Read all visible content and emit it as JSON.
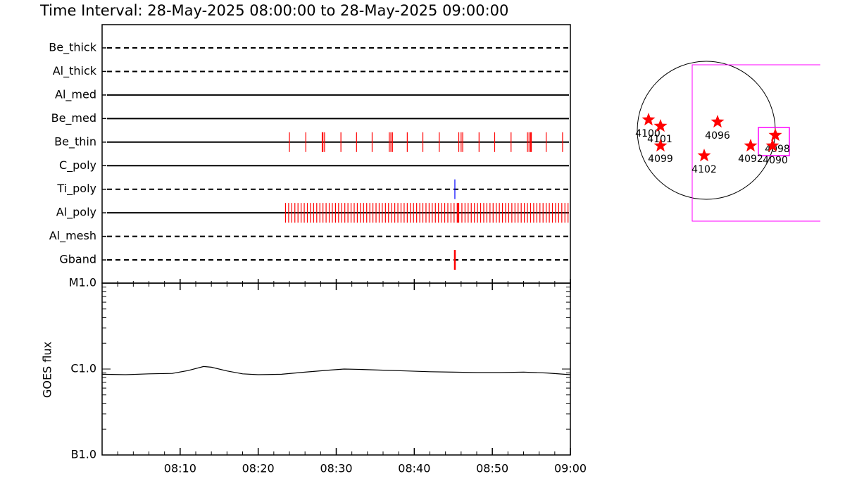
{
  "title": "Time Interval: 28-May-2025 08:00:00 to 28-May-2025 09:00:00",
  "filter_panel": {
    "xlim": [
      0,
      60
    ],
    "filters": [
      {
        "name": "Be_thick",
        "line": "dashed",
        "events": []
      },
      {
        "name": "Al_thick",
        "line": "dashed",
        "events": []
      },
      {
        "name": "Al_med",
        "line": "solid",
        "events": []
      },
      {
        "name": "Be_med",
        "line": "solid",
        "events": []
      },
      {
        "name": "Be_thin",
        "line": "solid",
        "color": "#ff0000",
        "events": [
          24.0,
          26.1,
          28.2,
          28.3,
          28.5,
          30.6,
          32.6,
          34.6,
          36.8,
          37.0,
          37.2,
          39.1,
          41.1,
          43.2,
          45.7,
          46.0,
          46.2,
          48.3,
          50.3,
          52.4,
          54.5,
          54.7,
          54.9,
          55.0,
          56.9,
          59.0
        ]
      },
      {
        "name": "C_poly",
        "line": "solid",
        "events": []
      },
      {
        "name": "Ti_poly",
        "line": "dashed",
        "color": "#0000ff",
        "events": [
          45.2
        ]
      },
      {
        "name": "Al_poly",
        "line": "solid",
        "color": "#ff0000",
        "events": [
          23.5,
          23.9,
          24.3,
          24.7,
          25.1,
          25.5,
          25.9,
          26.3,
          26.7,
          27.1,
          27.5,
          27.9,
          28.3,
          28.7,
          29.1,
          29.5,
          29.9,
          30.3,
          30.7,
          31.1,
          31.5,
          31.9,
          32.3,
          32.7,
          33.1,
          33.5,
          33.9,
          34.3,
          34.7,
          35.1,
          35.5,
          35.9,
          36.3,
          36.7,
          37.1,
          37.5,
          37.9,
          38.3,
          38.7,
          39.1,
          39.5,
          39.9,
          40.3,
          40.7,
          41.1,
          41.5,
          41.9,
          42.3,
          42.7,
          43.1,
          43.5,
          43.9,
          44.3,
          44.7,
          45.1,
          45.5,
          45.6,
          45.7,
          46.1,
          46.5,
          46.9,
          47.3,
          47.7,
          48.1,
          48.5,
          48.9,
          49.3,
          49.7,
          50.1,
          50.5,
          50.9,
          51.3,
          51.7,
          52.1,
          52.5,
          52.9,
          53.3,
          53.7,
          54.1,
          54.5,
          54.9,
          55.3,
          55.7,
          56.1,
          56.5,
          56.9,
          57.3,
          57.7,
          58.1,
          58.5,
          58.9,
          59.3,
          59.7
        ]
      },
      {
        "name": "Al_mesh",
        "line": "dashed",
        "events": []
      },
      {
        "name": "Gband",
        "line": "dashed",
        "color": "#ff0000",
        "events": [
          45.2
        ]
      }
    ]
  },
  "chart_data": {
    "type": "line",
    "y_label": "GOES flux",
    "color": "#000000",
    "x": [
      0,
      3,
      6,
      9,
      11,
      13,
      14,
      16,
      18,
      20,
      23,
      26,
      29,
      31,
      33,
      36,
      39,
      42,
      45,
      48,
      51,
      54,
      57,
      60
    ],
    "values": [
      8.7e-07,
      8.6e-07,
      8.8e-07,
      8.9e-07,
      9.6e-07,
      1.07e-06,
      1.05e-06,
      9.5e-07,
      8.8e-07,
      8.6e-07,
      8.7e-07,
      9.2e-07,
      9.7e-07,
      1e-06,
      9.9e-07,
      9.7e-07,
      9.5e-07,
      9.3e-07,
      9.2e-07,
      9.1e-07,
      9.1e-07,
      9.2e-07,
      9e-07,
      8.6e-07
    ],
    "xlim": [
      0,
      60
    ],
    "xticks": [
      {
        "value": 10,
        "label": "08:10"
      },
      {
        "value": 20,
        "label": "08:20"
      },
      {
        "value": 30,
        "label": "08:30"
      },
      {
        "value": 40,
        "label": "08:40"
      },
      {
        "value": 50,
        "label": "08:50"
      },
      {
        "value": 60,
        "label": "09:00"
      }
    ],
    "xticks_minor": [
      2,
      4,
      6,
      8,
      12,
      14,
      16,
      18,
      22,
      24,
      26,
      28,
      32,
      34,
      36,
      38,
      42,
      44,
      46,
      48,
      52,
      54,
      56,
      58
    ],
    "ylim": [
      1e-07,
      1e-05
    ],
    "log_y": true,
    "yticks": [
      {
        "value": 1e-07,
        "label": "B1.0"
      },
      {
        "value": 1e-06,
        "label": "C1.0"
      },
      {
        "value": 1e-05,
        "label": "M1.0"
      }
    ],
    "yticks_minor": [
      2e-07,
      3e-07,
      4e-07,
      5e-07,
      6e-07,
      7e-07,
      8e-07,
      9e-07,
      2e-06,
      3e-06,
      4e-06,
      5e-06,
      6e-06,
      7e-06,
      8e-06,
      9e-06
    ]
  },
  "solar_map": {
    "regions": [
      "4100",
      "4101",
      "4099",
      "4096",
      "4102",
      "4092",
      "4098",
      "4090"
    ],
    "star_color": "#ff0000",
    "fov_color": "#ff00ff"
  }
}
